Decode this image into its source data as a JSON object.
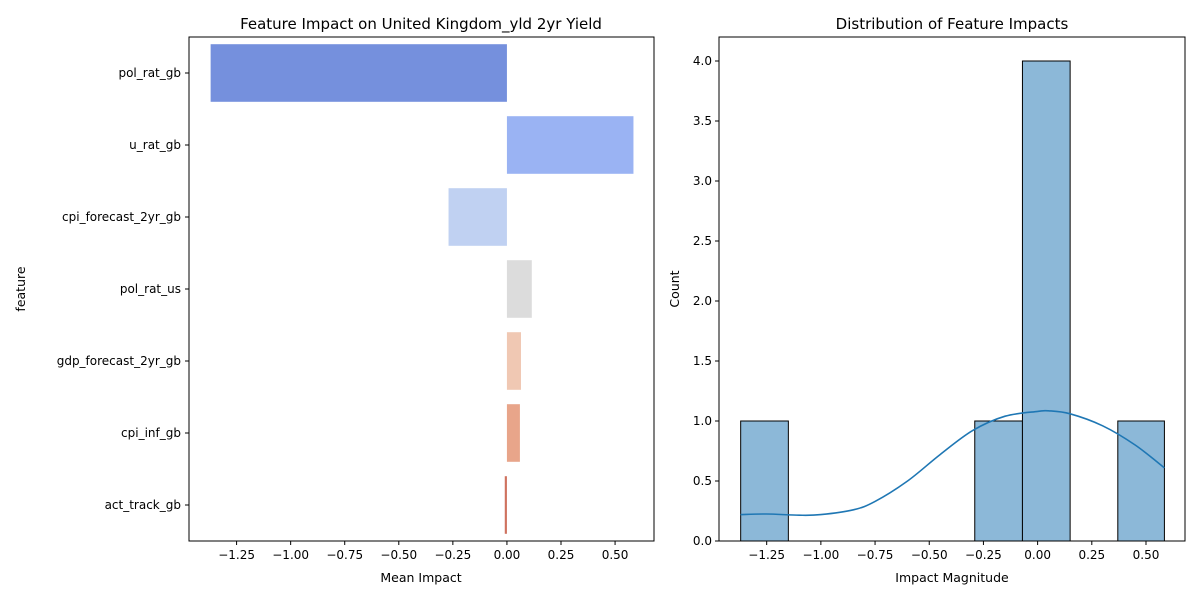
{
  "chart_data": [
    {
      "type": "bar",
      "orientation": "horizontal",
      "title": "Feature Impact on United Kingdom_yld 2yr Yield",
      "xlabel": "Mean Impact",
      "ylabel": "feature",
      "xlim": [
        -1.47,
        0.68
      ],
      "xticks": [
        -1.25,
        -1.0,
        -0.75,
        -0.5,
        -0.25,
        0.0,
        0.25,
        0.5
      ],
      "xtick_labels": [
        "−1.25",
        "−1.00",
        "−0.75",
        "−0.50",
        "−0.25",
        "0.00",
        "0.25",
        "0.50"
      ],
      "categories": [
        "pol_rat_gb",
        "u_rat_gb",
        "cpi_forecast_2yr_gb",
        "pol_rat_us",
        "gdp_forecast_2yr_gb",
        "cpi_inf_gb",
        "act_track_gb"
      ],
      "values": [
        -1.37,
        0.585,
        -0.27,
        0.115,
        0.065,
        0.06,
        -0.01
      ],
      "colors": [
        "#7590dd",
        "#9ab3f3",
        "#c0d1f2",
        "#dcdcdc",
        "#f0c8b3",
        "#e8a58a",
        "#cf725f"
      ]
    },
    {
      "type": "histogram",
      "title": "Distribution of Feature Impacts",
      "xlabel": "Impact Magnitude",
      "ylabel": "Count",
      "xlim": [
        -1.47,
        0.68
      ],
      "ylim": [
        0,
        4.2
      ],
      "xticks": [
        -1.25,
        -1.0,
        -0.75,
        -0.5,
        -0.25,
        0.0,
        0.25,
        0.5
      ],
      "xtick_labels": [
        "−1.25",
        "−1.00",
        "−0.75",
        "−0.50",
        "−0.25",
        "0.00",
        "0.25",
        "0.50"
      ],
      "yticks": [
        0,
        0.5,
        1,
        1.5,
        2,
        2.5,
        3,
        3.5,
        4
      ],
      "ytick_labels": [
        "0.0",
        "0.5",
        "1.0",
        "1.5",
        "2.0",
        "2.5",
        "3.0",
        "3.5",
        "4.0"
      ],
      "bins": [
        {
          "x0": -1.37,
          "x1": -1.15,
          "count": 1
        },
        {
          "x0": -1.15,
          "x1": -0.93,
          "count": 0
        },
        {
          "x0": -0.93,
          "x1": -0.72,
          "count": 0
        },
        {
          "x0": -0.72,
          "x1": -0.5,
          "count": 0
        },
        {
          "x0": -0.5,
          "x1": -0.29,
          "count": 0
        },
        {
          "x0": -0.29,
          "x1": -0.07,
          "count": 1
        },
        {
          "x0": -0.07,
          "x1": 0.15,
          "count": 4
        },
        {
          "x0": 0.15,
          "x1": 0.37,
          "count": 0
        },
        {
          "x0": 0.37,
          "x1": 0.585,
          "count": 1
        }
      ],
      "kde": {
        "x": [
          -1.37,
          -1.25,
          -1.1,
          -1.0,
          -0.85,
          -0.75,
          -0.6,
          -0.45,
          -0.3,
          -0.15,
          0.0,
          0.05,
          0.15,
          0.3,
          0.45,
          0.585
        ],
        "y": [
          0.22,
          0.225,
          0.215,
          0.22,
          0.26,
          0.33,
          0.5,
          0.72,
          0.92,
          1.04,
          1.08,
          1.085,
          1.06,
          0.96,
          0.8,
          0.61
        ]
      },
      "bar_color": "#8cb8d8",
      "kde_color": "#1f77b4"
    }
  ]
}
